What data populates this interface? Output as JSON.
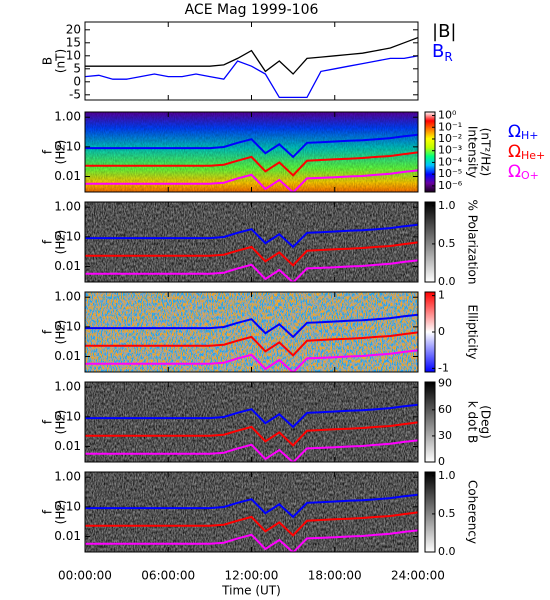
{
  "chart_data": [
    {
      "type": "line",
      "title": "ACE Mag 1999-106",
      "ylabel": [
        "B",
        "(nT)"
      ],
      "xlabel": "Time (UT)",
      "xlim": [
        0,
        24
      ],
      "x": [
        0,
        1,
        2,
        3,
        4,
        5,
        6,
        7,
        8,
        9,
        10,
        11,
        12,
        13,
        14,
        15,
        16,
        17,
        18,
        19,
        20,
        21,
        22,
        23,
        24
      ],
      "xticks": [
        {
          "value": 0,
          "label": "00:00:00"
        },
        {
          "value": 6,
          "label": "06:00:00"
        },
        {
          "value": 12,
          "label": "12:00:00"
        },
        {
          "value": 18,
          "label": "18:00:00"
        },
        {
          "value": 24,
          "label": "24:00:00"
        }
      ],
      "ylim": [
        -7,
        23
      ],
      "yticks": [
        -5,
        0,
        5,
        10,
        15,
        20
      ],
      "series": [
        {
          "name": "|B|",
          "color": "#000000",
          "values": [
            6,
            6,
            6,
            6,
            6,
            6,
            6,
            6,
            6,
            6,
            6.5,
            9,
            12,
            4,
            8,
            3,
            9,
            9.5,
            10,
            10.5,
            11,
            12,
            13,
            15,
            17
          ]
        },
        {
          "name": "B",
          "subscript": "R",
          "color": "#0000ff",
          "values": [
            2,
            2.5,
            1,
            1,
            2,
            3,
            2,
            2,
            3,
            2,
            1,
            8,
            6,
            3,
            -6,
            -6,
            -6,
            4,
            5,
            6,
            7,
            8,
            9,
            9,
            10
          ]
        }
      ]
    },
    {
      "type": "spectrogram",
      "ylabel": [
        "f",
        "(Hz)"
      ],
      "log_y": true,
      "ylim": [
        0.003,
        1.5
      ],
      "yticks": [
        {
          "value": 0.01,
          "label": "0.01"
        },
        {
          "value": 0.1,
          "label": "0.10"
        },
        {
          "value": 1,
          "label": "1.00"
        }
      ],
      "colorbar": {
        "label": [
          "Intensity",
          "(nT²/Hz)"
        ],
        "log": true,
        "lim": [
          3e-07,
          2
        ],
        "colors": [
          "#1a0020",
          "#6a00a0",
          "#0000ff",
          "#00c0ff",
          "#00ff80",
          "#c0ff00",
          "#ffff00",
          "#ff8000",
          "#ff0000",
          "#ffffff"
        ],
        "ticks": [
          {
            "value": 1,
            "label": "10⁰"
          },
          {
            "value": 0.1,
            "label": "10⁻¹"
          },
          {
            "value": 0.01,
            "label": "10⁻²"
          },
          {
            "value": 0.001,
            "label": "10⁻³"
          },
          {
            "value": 0.0001,
            "label": "10⁻⁴"
          },
          {
            "value": 1e-05,
            "label": "10⁻⁵"
          },
          {
            "value": 1e-06,
            "label": "10⁻⁶"
          }
        ]
      },
      "series": [
        {
          "name": "Ω",
          "subscript": "H+",
          "color": "#0000ff",
          "values": [
            0.091,
            0.091,
            0.091,
            0.091,
            0.091,
            0.091,
            0.091,
            0.091,
            0.091,
            0.091,
            0.099,
            0.137,
            0.182,
            0.061,
            0.122,
            0.046,
            0.137,
            0.144,
            0.152,
            0.16,
            0.167,
            0.182,
            0.198,
            0.228,
            0.258
          ]
        },
        {
          "name": "Ω",
          "subscript": "He+",
          "color": "#ff0000",
          "values": [
            0.023,
            0.023,
            0.023,
            0.023,
            0.023,
            0.023,
            0.023,
            0.023,
            0.023,
            0.023,
            0.025,
            0.034,
            0.046,
            0.015,
            0.03,
            0.011,
            0.034,
            0.036,
            0.038,
            0.04,
            0.042,
            0.046,
            0.049,
            0.057,
            0.065
          ]
        },
        {
          "name": "Ω",
          "subscript": "O+",
          "color": "#ff00ff",
          "values": [
            0.0057,
            0.0057,
            0.0057,
            0.0057,
            0.0057,
            0.0057,
            0.0057,
            0.0057,
            0.0057,
            0.0057,
            0.0062,
            0.0086,
            0.0114,
            0.0038,
            0.0076,
            0.0029,
            0.0086,
            0.009,
            0.0095,
            0.01,
            0.0104,
            0.0114,
            0.0124,
            0.0143,
            0.0161
          ]
        }
      ]
    },
    {
      "type": "spectrogram",
      "ylabel": [
        "f",
        "(Hz)"
      ],
      "log_y": true,
      "ylim": [
        0.003,
        1.5
      ],
      "yticks": [
        {
          "value": 0.01,
          "label": "0.01"
        },
        {
          "value": 0.1,
          "label": "0.10"
        },
        {
          "value": 1,
          "label": "1.00"
        }
      ],
      "colorbar": {
        "label": [
          "% Polarization"
        ],
        "lim": [
          0,
          1.05
        ],
        "colors": [
          "#ffffff",
          "#000000"
        ],
        "ticks": [
          {
            "value": 0,
            "label": "0.0"
          },
          {
            "value": 0.5,
            "label": "0.5"
          },
          {
            "value": 1,
            "label": "1.0"
          }
        ]
      }
    },
    {
      "type": "spectrogram",
      "ylabel": [
        "f",
        "(Hz)"
      ],
      "log_y": true,
      "ylim": [
        0.003,
        1.5
      ],
      "yticks": [
        {
          "value": 0.01,
          "label": "0.01"
        },
        {
          "value": 0.1,
          "label": "0.10"
        },
        {
          "value": 1,
          "label": "1.00"
        }
      ],
      "colorbar": {
        "label": [
          "Ellipticity"
        ],
        "lim": [
          -1.1,
          1.1
        ],
        "colors": [
          "#0000ff",
          "#ffffff",
          "#ff0000"
        ],
        "ticks": [
          -1,
          0,
          1
        ]
      }
    },
    {
      "type": "spectrogram",
      "ylabel": [
        "f",
        "(Hz)"
      ],
      "log_y": true,
      "ylim": [
        0.003,
        1.5
      ],
      "yticks": [
        {
          "value": 0.01,
          "label": "0.01"
        },
        {
          "value": 0.1,
          "label": "0.10"
        },
        {
          "value": 1,
          "label": "1.00"
        }
      ],
      "colorbar": {
        "label": [
          "k dot B",
          "(Deg)"
        ],
        "lim": [
          0,
          92
        ],
        "colors": [
          "#ffffff",
          "#000000"
        ],
        "ticks": [
          0,
          30,
          60,
          90
        ]
      }
    },
    {
      "type": "spectrogram",
      "ylabel": [
        "f",
        "(Hz)"
      ],
      "log_y": true,
      "ylim": [
        0.003,
        1.5
      ],
      "yticks": [
        {
          "value": 0.01,
          "label": "0.01"
        },
        {
          "value": 0.1,
          "label": "0.10"
        },
        {
          "value": 1,
          "label": "1.00"
        }
      ],
      "colorbar": {
        "label": [
          "Coherency"
        ],
        "lim": [
          0,
          1.05
        ],
        "colors": [
          "#ffffff",
          "#000000"
        ],
        "ticks": [
          {
            "value": 0,
            "label": "0.0"
          },
          {
            "value": 0.5,
            "label": "0.5"
          },
          {
            "value": 1,
            "label": "1.0"
          }
        ]
      }
    }
  ]
}
